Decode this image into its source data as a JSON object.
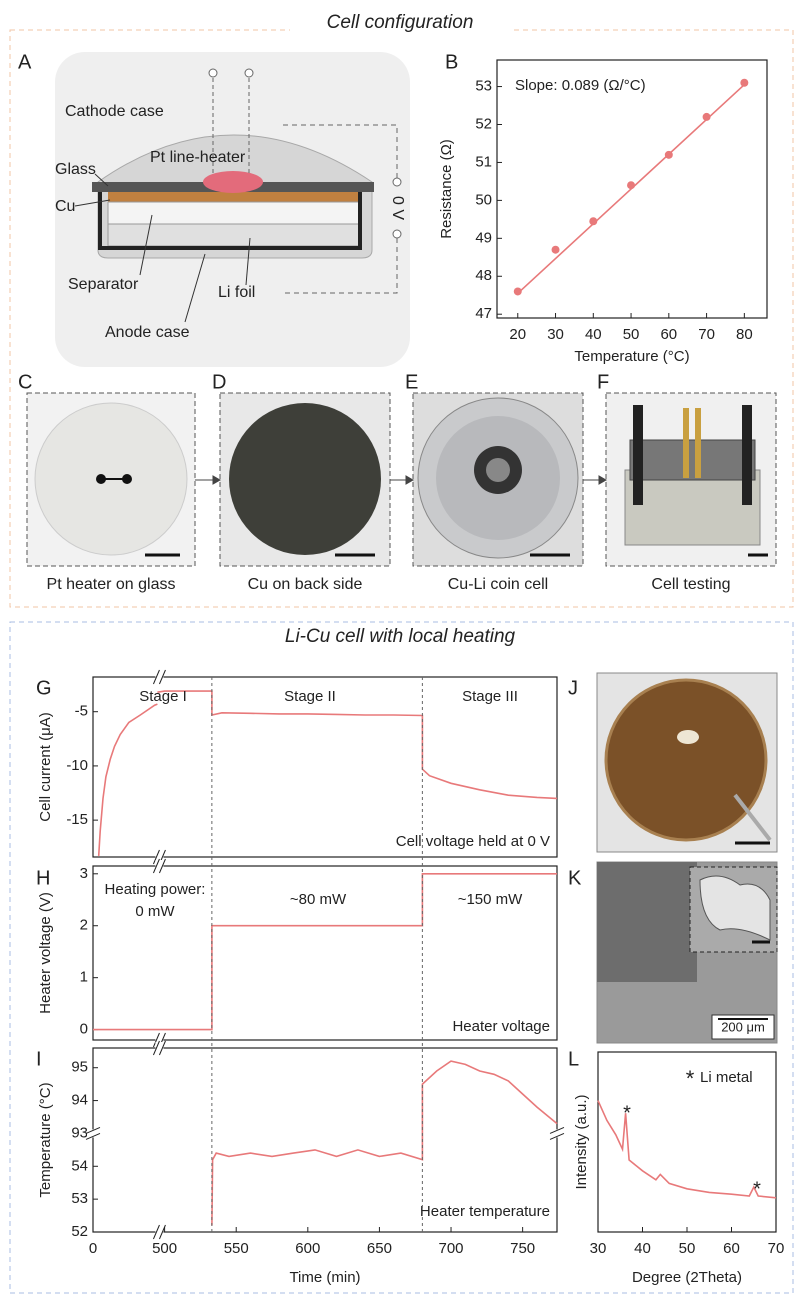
{
  "sections": {
    "top": "Cell configuration",
    "bottom": "Li-Cu cell with local heating"
  },
  "panel_a": {
    "label": "A",
    "labels": [
      "Cathode case",
      "Pt line-heater",
      "Glass",
      "Cu",
      "Separator",
      "Li foil",
      "Anode case",
      "0 V"
    ]
  },
  "photos": [
    {
      "label": "C",
      "caption": "Pt heater on glass"
    },
    {
      "label": "D",
      "caption": "Cu on back side"
    },
    {
      "label": "E",
      "caption": "Cu-Li coin cell"
    },
    {
      "label": "F",
      "caption": "Cell testing"
    },
    {
      "label": "J"
    },
    {
      "label": "K",
      "scale_bar": "200 μm"
    }
  ],
  "chart_data": [
    {
      "type": "scatter",
      "label": "B",
      "xlabel": "Temperature (°C)",
      "ylabel": "Resistance (Ω)",
      "xlim": [
        14.5,
        86
      ],
      "ylim": [
        46.9,
        53.7
      ],
      "xticks": [
        20,
        30,
        40,
        50,
        60,
        70,
        80
      ],
      "yticks": [
        47,
        48,
        49,
        50,
        51,
        52,
        53
      ],
      "annotations": [
        "Slope: 0.089 (Ω/°C)"
      ],
      "series": [
        {
          "color": "#e8797a",
          "marker": "circle",
          "x": [
            20,
            30,
            40,
            50,
            60,
            70,
            80
          ],
          "values": [
            47.6,
            48.7,
            49.45,
            50.4,
            51.2,
            52.2,
            53.1
          ]
        },
        {
          "color": "#e8797a",
          "marker": "none",
          "x": [
            20,
            80
          ],
          "values": [
            47.55,
            53.05
          ]
        }
      ]
    },
    {
      "type": "line",
      "label": "G",
      "ylabel": "Cell current (μA)",
      "xlim": [
        0,
        774
      ],
      "xbreak": [
        45,
        495
      ],
      "ylim": [
        -18.4,
        -1.8
      ],
      "yticks": [
        -5,
        -10,
        -15
      ],
      "vlines": [
        533,
        680
      ],
      "annotations": [
        "Stage I",
        "Stage II",
        "Stage III",
        "Cell voltage held at 0 V"
      ],
      "series": [
        {
          "color": "#e8797a",
          "x": [
            4,
            5,
            7,
            9,
            12,
            15,
            19,
            25,
            33,
            43,
            45,
            null,
            495,
            500,
            533,
            533,
            540,
            560,
            580,
            600,
            620,
            640,
            660,
            680,
            680,
            685,
            700,
            720,
            740,
            760,
            774
          ],
          "values": [
            -18.3,
            -16,
            -13,
            -11,
            -9.4,
            -8.2,
            -7.1,
            -6,
            -5.3,
            -4.4,
            -4.3,
            null,
            -3.2,
            -3.1,
            -3.1,
            -5.3,
            -5.1,
            -5.15,
            -5.2,
            -5.2,
            -5.25,
            -5.3,
            -5.3,
            -5.35,
            -10.3,
            -10.9,
            -11.6,
            -12.2,
            -12.7,
            -12.9,
            -13.0
          ]
        }
      ]
    },
    {
      "type": "line",
      "label": "H",
      "ylabel": "Heater voltage (V)",
      "xlim": [
        0,
        774
      ],
      "xbreak": [
        45,
        495
      ],
      "ylim": [
        -0.2,
        3.15
      ],
      "yticks": [
        0,
        1,
        2,
        3
      ],
      "annotations": [
        "Heating power:",
        "0 mW",
        "~80 mW",
        "~150 mW",
        "Heater voltage"
      ],
      "series": [
        {
          "color": "#e8797a",
          "x": [
            0,
            45,
            null,
            495,
            533,
            533,
            680,
            680,
            774
          ],
          "values": [
            0,
            0,
            null,
            0,
            0,
            2,
            2,
            3,
            3
          ]
        }
      ]
    },
    {
      "type": "line",
      "label": "I",
      "xlabel": "Time (min)",
      "ylabel": "Temperature (°C)",
      "xlim": [
        0,
        774
      ],
      "xbreak": [
        45,
        495
      ],
      "xticks": [
        0,
        500,
        550,
        600,
        650,
        700,
        750
      ],
      "ylim": [
        52,
        95.6
      ],
      "ybreak": [
        55,
        93
      ],
      "yticks": [
        52,
        53,
        54,
        93,
        94,
        95
      ],
      "annotations": [
        "Heater temperature"
      ],
      "series": [
        {
          "color": "#e8797a",
          "x": [
            533,
            533.5,
            536,
            545,
            560,
            575,
            590,
            605,
            620,
            635,
            650,
            665,
            680,
            680,
            690,
            700,
            710,
            720,
            730,
            740,
            750,
            760,
            774
          ],
          "values": [
            52.2,
            54.2,
            54.4,
            54.3,
            54.4,
            54.3,
            54.4,
            54.5,
            54.3,
            54.5,
            54.3,
            54.4,
            54.2,
            94.5,
            94.9,
            95.2,
            95.1,
            94.9,
            94.8,
            94.6,
            94.2,
            93.8,
            93.3
          ]
        }
      ]
    },
    {
      "type": "line",
      "label": "L",
      "xlabel": "Degree (2Theta)",
      "ylabel": "Intensity (a.u.)",
      "xlim": [
        30,
        70
      ],
      "ylim": [
        0,
        10
      ],
      "xticks": [
        30,
        40,
        50,
        60,
        70
      ],
      "annotations": [
        "*",
        "Li metal",
        "*",
        "*"
      ],
      "series": [
        {
          "color": "#e8797a",
          "x": [
            30,
            32,
            34,
            35.5,
            36.2,
            37,
            40,
            43,
            44,
            46,
            50,
            55,
            60,
            64,
            65,
            66,
            70
          ],
          "values": [
            7.3,
            6.2,
            5.4,
            4.6,
            6.6,
            4.0,
            3.4,
            2.9,
            3.2,
            2.7,
            2.4,
            2.2,
            2.1,
            2.0,
            2.5,
            2.0,
            1.9
          ]
        }
      ]
    }
  ]
}
